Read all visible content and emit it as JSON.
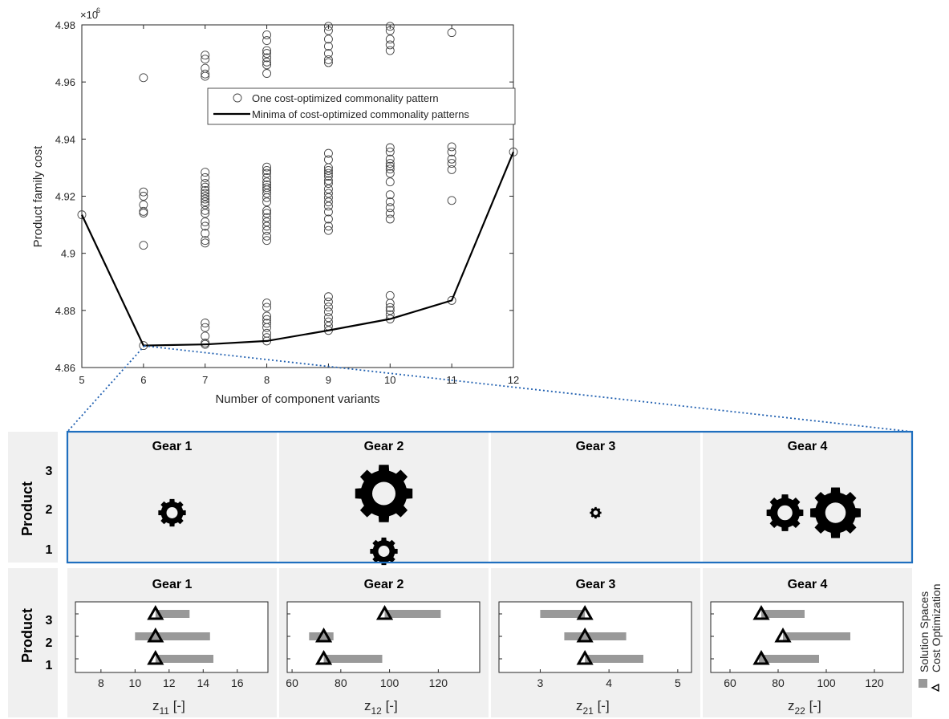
{
  "scatter": {
    "xlabel": "Number of component variants",
    "ylabel": "Product family cost",
    "exponent_base": "×10",
    "exponent_power": "6",
    "legend": {
      "circle_label": "One cost-optimized commonality pattern",
      "line_label": "Minima of cost-optimized commonality patterns"
    }
  },
  "gears": {
    "row_title": "Product",
    "column_titles": [
      "Gear 1",
      "Gear 2",
      "Gear 3",
      "Gear 4"
    ],
    "product_labels": [
      "3",
      "2",
      "1"
    ]
  },
  "solution_panels": {
    "row_title": "Product",
    "legend_labels": [
      "Solution Spaces",
      "Cost Optimization"
    ]
  },
  "colors": {
    "bar": "#999999",
    "panel_bg": "#f0f0f0",
    "highlight_border": "#1f6fbf",
    "zoom_line": "#1f5fb0"
  },
  "chart_data": [
    {
      "type": "scatter",
      "xlabel": "Number of component variants",
      "ylabel": "Product family cost",
      "xlim": [
        5,
        12
      ],
      "ylim": [
        4.86,
        4.98
      ],
      "y_multiplier": "1e6",
      "xticks": [
        5,
        6,
        7,
        8,
        9,
        10,
        11,
        12
      ],
      "yticks": [
        4.86,
        4.88,
        4.9,
        4.92,
        4.94,
        4.96,
        4.98
      ],
      "grid": false,
      "legend_position": "upper-right",
      "series": [
        {
          "name": "One cost-optimized commonality pattern",
          "marker": "circle",
          "points": [
            [
              5,
              4.9135
            ],
            [
              6,
              4.8677
            ],
            [
              6,
              4.9028
            ],
            [
              6,
              4.9141
            ],
            [
              6,
              4.9147
            ],
            [
              6,
              4.917
            ],
            [
              6,
              4.92
            ],
            [
              6,
              4.9215
            ],
            [
              6,
              4.9615
            ],
            [
              7,
              4.8681
            ],
            [
              7,
              4.8686
            ],
            [
              7,
              4.871
            ],
            [
              7,
              4.874
            ],
            [
              7,
              4.8756
            ],
            [
              7,
              4.9036
            ],
            [
              7,
              4.9045
            ],
            [
              7,
              4.907
            ],
            [
              7,
              4.9095
            ],
            [
              7,
              4.911
            ],
            [
              7,
              4.914
            ],
            [
              7,
              4.915
            ],
            [
              7,
              4.917
            ],
            [
              7,
              4.918
            ],
            [
              7,
              4.919
            ],
            [
              7,
              4.92
            ],
            [
              7,
              4.921
            ],
            [
              7,
              4.922
            ],
            [
              7,
              4.9232
            ],
            [
              7,
              4.9245
            ],
            [
              7,
              4.9265
            ],
            [
              7,
              4.9284
            ],
            [
              7,
              4.962
            ],
            [
              7,
              4.9628
            ],
            [
              7,
              4.9648
            ],
            [
              7,
              4.968
            ],
            [
              7,
              4.9694
            ],
            [
              8,
              4.8693
            ],
            [
              8,
              4.8705
            ],
            [
              8,
              4.872
            ],
            [
              8,
              4.874
            ],
            [
              8,
              4.8755
            ],
            [
              8,
              4.8768
            ],
            [
              8,
              4.878
            ],
            [
              8,
              4.8811
            ],
            [
              8,
              4.8826
            ],
            [
              8,
              4.9045
            ],
            [
              8,
              4.906
            ],
            [
              8,
              4.908
            ],
            [
              8,
              4.9095
            ],
            [
              8,
              4.911
            ],
            [
              8,
              4.9125
            ],
            [
              8,
              4.914
            ],
            [
              8,
              4.915
            ],
            [
              8,
              4.918
            ],
            [
              8,
              4.9195
            ],
            [
              8,
              4.921
            ],
            [
              8,
              4.9222
            ],
            [
              8,
              4.923
            ],
            [
              8,
              4.924
            ],
            [
              8,
              4.925
            ],
            [
              8,
              4.9265
            ],
            [
              8,
              4.928
            ],
            [
              8,
              4.929
            ],
            [
              8,
              4.9302
            ],
            [
              8,
              4.963
            ],
            [
              8,
              4.966
            ],
            [
              8,
              4.967
            ],
            [
              8,
              4.9685
            ],
            [
              8,
              4.97
            ],
            [
              8,
              4.971
            ],
            [
              8,
              4.9745
            ],
            [
              8,
              4.9765
            ],
            [
              9,
              4.873
            ],
            [
              9,
              4.8745
            ],
            [
              9,
              4.876
            ],
            [
              9,
              4.8775
            ],
            [
              9,
              4.8795
            ],
            [
              9,
              4.8812
            ],
            [
              9,
              4.883
            ],
            [
              9,
              4.8848
            ],
            [
              9,
              4.908
            ],
            [
              9,
              4.9095
            ],
            [
              9,
              4.912
            ],
            [
              9,
              4.9145
            ],
            [
              9,
              4.9165
            ],
            [
              9,
              4.918
            ],
            [
              9,
              4.9195
            ],
            [
              9,
              4.921
            ],
            [
              9,
              4.9225
            ],
            [
              9,
              4.9245
            ],
            [
              9,
              4.9255
            ],
            [
              9,
              4.927
            ],
            [
              9,
              4.928
            ],
            [
              9,
              4.929
            ],
            [
              9,
              4.93
            ],
            [
              9,
              4.9328
            ],
            [
              9,
              4.935
            ],
            [
              9,
              4.9668
            ],
            [
              9,
              4.9678
            ],
            [
              9,
              4.97
            ],
            [
              9,
              4.9725
            ],
            [
              9,
              4.975
            ],
            [
              9,
              4.978
            ],
            [
              9,
              4.9795
            ],
            [
              10,
              4.877
            ],
            [
              10,
              4.8785
            ],
            [
              10,
              4.88
            ],
            [
              10,
              4.881
            ],
            [
              10,
              4.8825
            ],
            [
              10,
              4.8852
            ],
            [
              10,
              4.912
            ],
            [
              10,
              4.914
            ],
            [
              10,
              4.916
            ],
            [
              10,
              4.918
            ],
            [
              10,
              4.9205
            ],
            [
              10,
              4.925
            ],
            [
              10,
              4.928
            ],
            [
              10,
              4.9295
            ],
            [
              10,
              4.9305
            ],
            [
              10,
              4.9315
            ],
            [
              10,
              4.933
            ],
            [
              10,
              4.9355
            ],
            [
              10,
              4.937
            ],
            [
              10,
              4.971
            ],
            [
              10,
              4.973
            ],
            [
              10,
              4.975
            ],
            [
              10,
              4.978
            ],
            [
              10,
              4.9795
            ],
            [
              11,
              4.8835
            ],
            [
              11,
              4.9185
            ],
            [
              11,
              4.9293
            ],
            [
              11,
              4.9315
            ],
            [
              11,
              4.933
            ],
            [
              11,
              4.9355
            ],
            [
              11,
              4.9373
            ],
            [
              11,
              4.9773
            ],
            [
              12,
              4.9355
            ]
          ]
        },
        {
          "name": "Minima of cost-optimized commonality patterns",
          "marker": "line",
          "points": [
            [
              5,
              4.9135
            ],
            [
              6,
              4.8677
            ],
            [
              7,
              4.8681
            ],
            [
              8,
              4.8693
            ],
            [
              9,
              4.873
            ],
            [
              10,
              4.877
            ],
            [
              11,
              4.8835
            ],
            [
              12,
              4.9355
            ]
          ]
        }
      ]
    },
    {
      "type": "gear_matrix",
      "title": "Gear 1",
      "gears": [
        {
          "product": 2,
          "scale": 0.6
        }
      ]
    },
    {
      "type": "gear_matrix",
      "title": "Gear 2",
      "gears": [
        {
          "product": 2.5,
          "scale": 1.25
        },
        {
          "product": 1,
          "scale": 0.6
        }
      ]
    },
    {
      "type": "gear_matrix",
      "title": "Gear 3",
      "gears": [
        {
          "product": 2,
          "scale": 0.25
        }
      ]
    },
    {
      "type": "gear_matrix",
      "title": "Gear 4",
      "gears": [
        {
          "product": 2,
          "scale": 0.8,
          "x_offset": -0.4
        },
        {
          "product": 2,
          "scale": 1.1,
          "x_offset": 0.5
        }
      ]
    },
    {
      "type": "bar",
      "title": "Gear 1",
      "xlabel_main": "z",
      "xlabel_sub": "11",
      "xlabel_unit": " [-]",
      "xlim": [
        6.5,
        17.8
      ],
      "xticks": [
        8,
        10,
        12,
        14,
        16
      ],
      "products": [
        3,
        2,
        1
      ],
      "ranges": [
        [
          11.2,
          13.2
        ],
        [
          10.0,
          14.4
        ],
        [
          11.2,
          14.6
        ]
      ],
      "optimum": [
        11.2,
        11.2,
        11.2
      ]
    },
    {
      "type": "bar",
      "title": "Gear 2",
      "xlabel_main": "z",
      "xlabel_sub": "12",
      "xlabel_unit": " [-]",
      "xlim": [
        58,
        137
      ],
      "xticks": [
        60,
        80,
        100,
        120
      ],
      "products": [
        3,
        2,
        1
      ],
      "ranges": [
        [
          98,
          121
        ],
        [
          67,
          77
        ],
        [
          73,
          97
        ]
      ],
      "optimum": [
        98,
        73,
        73
      ]
    },
    {
      "type": "bar",
      "title": "Gear 3",
      "xlabel_main": "z",
      "xlabel_sub": "21",
      "xlabel_unit": " [-]",
      "xlim": [
        2.4,
        5.2
      ],
      "xticks": [
        3,
        4,
        5
      ],
      "products": [
        3,
        2,
        1
      ],
      "ranges": [
        [
          3.0,
          3.65
        ],
        [
          3.35,
          4.25
        ],
        [
          3.65,
          4.5
        ]
      ],
      "optimum": [
        3.65,
        3.65,
        3.65
      ]
    },
    {
      "type": "bar",
      "title": "Gear 4",
      "xlabel_main": "z",
      "xlabel_sub": "22",
      "xlabel_unit": " [-]",
      "xlim": [
        52,
        132
      ],
      "xticks": [
        60,
        80,
        100,
        120
      ],
      "products": [
        3,
        2,
        1
      ],
      "ranges": [
        [
          73,
          91
        ],
        [
          82,
          110
        ],
        [
          72,
          97
        ]
      ],
      "optimum": [
        73,
        82,
        73
      ]
    }
  ]
}
